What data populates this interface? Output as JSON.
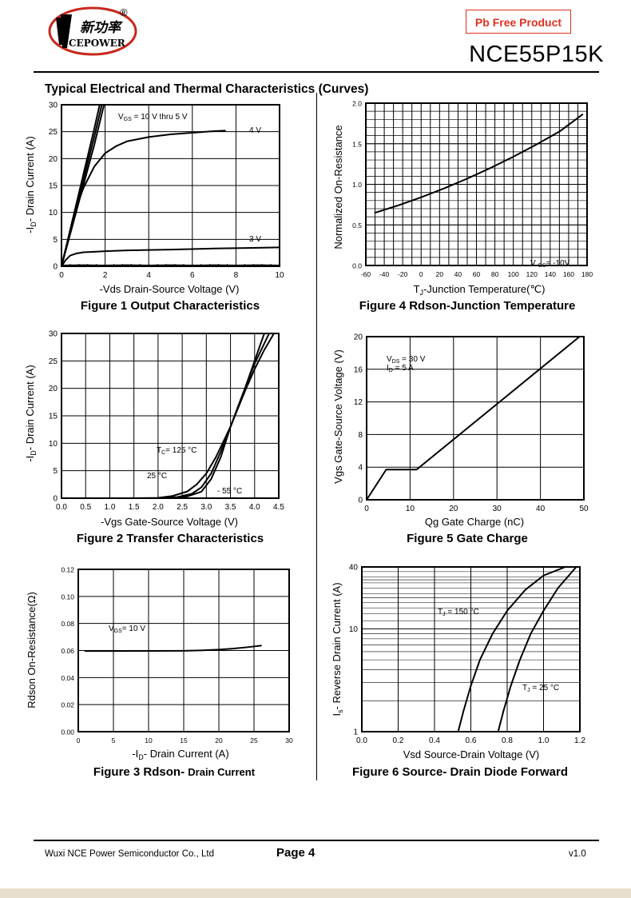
{
  "header": {
    "logo_text_cn": "新功率",
    "logo_text_en": "CEPOWER",
    "registered_mark": "®",
    "badge": "Pb Free Product",
    "part_number": "NCE55P15K"
  },
  "section_title": "Typical Electrical and Thermal Characteristics (Curves)",
  "figures": {
    "fig1": {
      "caption": "Figure 1 Output Characteristics",
      "xlabel": "-Vds Drain-Source Voltage (V)",
      "ylabel_main": "-I",
      "ylabel_sub": "D",
      "ylabel_rest": "- Drain Current (A)",
      "ann_vgs_main": "V",
      "ann_vgs_sub": "GS",
      "ann_vgs_rest": " = 10 V thru 5 V",
      "ann_4v": "4 V",
      "ann_3v": "3 V"
    },
    "fig2": {
      "caption": "Figure 2 Transfer Characteristics",
      "xlabel": "-Vgs Gate-Source Voltage (V)",
      "ylabel_main": "-I",
      "ylabel_sub": "D",
      "ylabel_rest": "- Drain Current (A)",
      "ann_tc_main": "T",
      "ann_tc_sub": "C",
      "ann_tc_rest": "= 125 °C",
      "ann_25": "25 °C",
      "ann_m55": "- 55 °C"
    },
    "fig3": {
      "caption_bold": "Figure 3 Rdson- ",
      "caption_small": "Drain Current",
      "xlabel_main": "-I",
      "xlabel_sub": "D",
      "xlabel_rest": "- Drain Current (A)",
      "ylabel": "Rdson On-Resistance(Ω)",
      "ann_vgs_main": "V",
      "ann_vgs_sub": "GS",
      "ann_vgs_rest": "= 10 V"
    },
    "fig4": {
      "caption": "Figure 4 Rdson-Junction Temperature",
      "xlabel_main": "T",
      "xlabel_sub": "J",
      "xlabel_rest": "-Junction Temperature(℃)",
      "ylabel": "Normalized On-Resistance",
      "ann_vgs_main": "V ",
      "ann_vgs_sub": "GS",
      "ann_vgs_rest": "= -10V"
    },
    "fig5": {
      "caption": "Figure 5 Gate Charge",
      "xlabel": "Qg Gate Charge (nC)",
      "ylabel": "Vgs Gate-Source Voltage (V)",
      "ann_vds_main": "V",
      "ann_vds_sub": "DS",
      "ann_vds_rest": " = 30 V",
      "ann_id_main": "I",
      "ann_id_sub": "D",
      "ann_id_rest": " = 5 A"
    },
    "fig6": {
      "caption": "Figure 6 Source- Drain Diode Forward",
      "xlabel": "Vsd Source-Drain Voltage (V)",
      "ylabel_main": "I",
      "ylabel_sub": "s",
      "ylabel_rest": "- Reverse Drain Current (A)",
      "ann_150_main": "T",
      "ann_150_sub": "J",
      "ann_150_rest": " = 150 °C",
      "ann_25_main": "T",
      "ann_25_sub": "J",
      "ann_25_rest": " = 25 °C"
    }
  },
  "chart_data": [
    {
      "id": "fig1",
      "type": "line",
      "xlim": [
        0,
        10
      ],
      "ylim": [
        0,
        30
      ],
      "xticks": [
        "0",
        "2",
        "4",
        "6",
        "8",
        "10"
      ],
      "yticks": [
        "0",
        "5",
        "10",
        "15",
        "20",
        "25",
        "30"
      ],
      "grid": true,
      "series": [
        {
          "name": "VGS = 10 V thru 5 V",
          "x": [
            0,
            0.5,
            1.0,
            1.5,
            1.75
          ],
          "y": [
            0,
            8.5,
            17,
            25.5,
            30
          ]
        },
        {
          "name": "",
          "x": [
            0,
            0.5,
            1.0,
            1.5,
            1.85
          ],
          "y": [
            0,
            8,
            16,
            24,
            30
          ]
        },
        {
          "name": "",
          "x": [
            0,
            0.5,
            1.0,
            1.5,
            1.95
          ],
          "y": [
            0,
            7.5,
            15,
            22.5,
            30
          ]
        },
        {
          "name": "4 V",
          "x": [
            0,
            0.3,
            0.6,
            1.0,
            1.5,
            2.0,
            2.5,
            3.0,
            4.0,
            5.0,
            6.0,
            7.0,
            7.5
          ],
          "y": [
            0,
            5,
            10,
            14.5,
            18.5,
            21,
            22.3,
            23.2,
            24.0,
            24.5,
            24.8,
            25.1,
            25.2
          ]
        },
        {
          "name": "3 V",
          "x": [
            0,
            0.2,
            0.4,
            0.7,
            1.0,
            2.0,
            3.0,
            5.0,
            7.0,
            8.5,
            10
          ],
          "y": [
            0,
            1.2,
            2.0,
            2.4,
            2.6,
            2.8,
            2.95,
            3.1,
            3.3,
            3.4,
            3.5
          ]
        },
        {
          "name": "",
          "x": [
            0,
            1,
            2,
            3,
            4,
            5,
            6,
            7,
            8,
            9,
            10
          ],
          "y": [
            0.15,
            0.2,
            0.15,
            0.2,
            0.15,
            0.2,
            0.15,
            0.2,
            0.15,
            0.2,
            0.15
          ]
        }
      ]
    },
    {
      "id": "fig2",
      "type": "line",
      "xlim": [
        0,
        4.5
      ],
      "ylim": [
        0,
        30
      ],
      "xticks": [
        "0.0",
        "0.5",
        "1.0",
        "1.5",
        "2.0",
        "2.5",
        "3.0",
        "3.5",
        "4.0",
        "4.5"
      ],
      "yticks": [
        "0",
        "5",
        "10",
        "15",
        "20",
        "25",
        "30"
      ],
      "grid": true,
      "series": [
        {
          "name": "TC = 125 °C",
          "x": [
            0,
            1.5,
            2.0,
            2.3,
            2.6,
            2.8,
            3.0,
            3.2,
            3.5,
            3.8,
            4.0,
            4.2
          ],
          "y": [
            0,
            0,
            0.05,
            0.4,
            1.2,
            2.5,
            4.5,
            7.5,
            13,
            20,
            25,
            30
          ]
        },
        {
          "name": "25 °C",
          "x": [
            0,
            2.0,
            2.4,
            2.7,
            2.9,
            3.1,
            3.3,
            3.5,
            3.8,
            4.0,
            4.3
          ],
          "y": [
            0,
            0,
            0.2,
            0.8,
            2.0,
            4.5,
            8.5,
            13,
            20,
            24.5,
            30
          ]
        },
        {
          "name": "- 55 °C",
          "x": [
            0,
            2.3,
            2.6,
            2.9,
            3.1,
            3.3,
            3.5,
            3.8,
            4.0,
            4.2,
            4.4
          ],
          "y": [
            0,
            0,
            0.3,
            1.2,
            3.5,
            7.5,
            13,
            19.5,
            23.5,
            27,
            30
          ]
        }
      ]
    },
    {
      "id": "fig3",
      "type": "line",
      "xlim": [
        0,
        30
      ],
      "ylim": [
        0,
        0.12
      ],
      "xticks": [
        "0",
        "5",
        "10",
        "15",
        "20",
        "25",
        "30"
      ],
      "yticks": [
        "0.00",
        "0.02",
        "0.04",
        "0.06",
        "0.08",
        "0.10",
        "0.12"
      ],
      "grid": true,
      "series": [
        {
          "name": "VGS= 10 V",
          "x": [
            1,
            5,
            10,
            15,
            18,
            20,
            22,
            24,
            26
          ],
          "y": [
            0.0596,
            0.0596,
            0.0597,
            0.0598,
            0.0602,
            0.0607,
            0.0614,
            0.0624,
            0.0636
          ]
        }
      ]
    },
    {
      "id": "fig4",
      "type": "line",
      "xlim": [
        -60,
        180
      ],
      "ylim": [
        0.0,
        2.0
      ],
      "xticks": [
        "-60",
        "-40",
        "-20",
        "0",
        "20",
        "40",
        "60",
        "80",
        "100",
        "120",
        "140",
        "160",
        "180"
      ],
      "yticks": [
        "0.0",
        "0.5",
        "1.0",
        "1.5",
        "2.0"
      ],
      "grid": true,
      "series": [
        {
          "name": "V GS= -10V",
          "x": [
            -50,
            -25,
            0,
            25,
            50,
            75,
            100,
            125,
            150,
            175
          ],
          "y": [
            0.65,
            0.74,
            0.84,
            0.95,
            1.07,
            1.2,
            1.34,
            1.49,
            1.65,
            1.86
          ]
        }
      ]
    },
    {
      "id": "fig5",
      "type": "line",
      "xlim": [
        0,
        50
      ],
      "ylim": [
        0,
        20
      ],
      "xticks": [
        "0",
        "10",
        "20",
        "30",
        "40",
        "50"
      ],
      "yticks": [
        "0",
        "4",
        "8",
        "12",
        "16",
        "20"
      ],
      "grid": true,
      "series": [
        {
          "name": "VDS = 30 V, ID = 5 A",
          "x": [
            0,
            4.5,
            11.5,
            49
          ],
          "y": [
            0,
            3.7,
            3.7,
            20
          ]
        }
      ]
    },
    {
      "id": "fig6",
      "type": "line",
      "xscale": "linear",
      "yscale": "log",
      "xlim": [
        0.0,
        1.2
      ],
      "ylim": [
        1,
        40
      ],
      "xticks": [
        "0.0",
        "0.2",
        "0.4",
        "0.6",
        "0.8",
        "1.0",
        "1.2"
      ],
      "yticks": [
        "1",
        "10",
        "40"
      ],
      "grid": true,
      "series": [
        {
          "name": "TJ = 150 °C",
          "x": [
            0.53,
            0.56,
            0.6,
            0.65,
            0.72,
            0.8,
            0.9,
            1.0,
            1.12
          ],
          "y": [
            1,
            1.6,
            2.8,
            5,
            9,
            15,
            24,
            33,
            40
          ]
        },
        {
          "name": "TJ = 25 °C",
          "x": [
            0.75,
            0.78,
            0.82,
            0.87,
            0.93,
            1.0,
            1.08,
            1.18
          ],
          "y": [
            1,
            1.6,
            2.8,
            5,
            9,
            15,
            25,
            40
          ]
        }
      ]
    }
  ],
  "footer": {
    "company": "Wuxi NCE Power Semiconductor Co., Ltd",
    "page": "Page  4",
    "version": "v1.0"
  }
}
